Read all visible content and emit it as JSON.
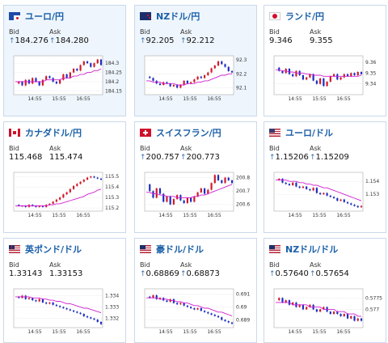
{
  "cards": [
    {
      "id": "usdjpy",
      "title": "ユーロ/円",
      "bid": "184.276",
      "ask": "184.280",
      "bid_arrow": "↑",
      "ask_arrow": "↑",
      "flag": "eu-jp",
      "highlight": true,
      "chart_data": {
        "type": "line",
        "x_ticks": [
          "14:55",
          "15:55",
          "16:55"
        ],
        "y_ticks": [
          "184.3",
          "184.25",
          "184.2",
          "184.15"
        ],
        "ylim": [
          184.13,
          184.34
        ],
        "series": [
          {
            "values": [
              184.19,
              184.2,
              184.18,
              184.21,
              184.19,
              184.22,
              184.2,
              184.18,
              184.21,
              184.23,
              184.22,
              184.2,
              184.19,
              184.21,
              184.24,
              184.22,
              184.25,
              184.27,
              184.26,
              184.29,
              184.31,
              184.3,
              184.28,
              184.3,
              184.32,
              184.29
            ],
            "color": "#2033c8"
          },
          {
            "values": [
              184.2,
              184.2,
              184.2,
              184.2,
              184.2,
              184.2,
              184.2,
              184.2,
              184.2,
              184.21,
              184.21,
              184.21,
              184.21,
              184.21,
              184.22,
              184.22,
              184.22,
              184.23,
              184.23,
              184.24,
              184.24,
              184.25,
              184.25,
              184.26,
              184.26,
              184.27
            ],
            "color": "#d020d0"
          }
        ]
      }
    },
    {
      "id": "nzdjpy",
      "title": "NZドル/円",
      "bid": "92.205",
      "ask": "92.212",
      "bid_arrow": "↑",
      "ask_arrow": "↑",
      "flag": "nz",
      "highlight": true,
      "chart_data": {
        "type": "line",
        "x_ticks": [
          "14:55",
          "15:55",
          "16:55"
        ],
        "y_ticks": [
          "92.3",
          "92.2",
          "92.1"
        ],
        "ylim": [
          92.05,
          92.33
        ],
        "series": [
          {
            "values": [
              92.18,
              92.17,
              92.15,
              92.13,
              92.12,
              92.14,
              92.13,
              92.11,
              92.12,
              92.1,
              92.12,
              92.15,
              92.13,
              92.14,
              92.16,
              92.18,
              92.17,
              92.19,
              92.21,
              92.24,
              92.26,
              92.29,
              92.27,
              92.25,
              92.22,
              92.21
            ],
            "color": "#2033c8"
          },
          {
            "values": [
              92.15,
              92.15,
              92.14,
              92.14,
              92.14,
              92.13,
              92.13,
              92.13,
              92.13,
              92.12,
              92.12,
              92.12,
              92.13,
              92.13,
              92.13,
              92.14,
              92.14,
              92.15,
              92.15,
              92.16,
              92.17,
              92.18,
              92.19,
              92.19,
              92.2,
              92.2
            ],
            "color": "#d020d0"
          }
        ]
      }
    },
    {
      "id": "zarjpy",
      "title": "ランド/円",
      "bid": "9.346",
      "ask": "9.355",
      "bid_arrow": "",
      "ask_arrow": "",
      "flag": "za",
      "highlight": false,
      "chart_data": {
        "type": "line",
        "x_ticks": [
          "14:55",
          "15:55",
          "16:55"
        ],
        "y_ticks": [
          "9.36",
          "9.35",
          "9.34"
        ],
        "ylim": [
          9.33,
          9.366
        ],
        "series": [
          {
            "values": [
              9.355,
              9.352,
              9.35,
              9.354,
              9.349,
              9.347,
              9.352,
              9.348,
              9.344,
              9.346,
              9.349,
              9.343,
              9.34,
              9.345,
              9.338,
              9.342,
              9.347,
              9.349,
              9.344,
              9.346,
              9.349,
              9.347,
              9.35,
              9.348,
              9.351,
              9.349
            ],
            "color": "#2033c8"
          },
          {
            "values": [
              9.353,
              9.353,
              9.352,
              9.352,
              9.351,
              9.351,
              9.35,
              9.35,
              9.35,
              9.349,
              9.349,
              9.348,
              9.348,
              9.348,
              9.347,
              9.347,
              9.347,
              9.347,
              9.347,
              9.347,
              9.347,
              9.347,
              9.347,
              9.347,
              9.347,
              9.348
            ],
            "color": "#d020d0"
          }
        ]
      }
    },
    {
      "id": "cadjpy",
      "title": "カナダドル/円",
      "bid": "115.468",
      "ask": "115.474",
      "bid_arrow": "",
      "ask_arrow": "",
      "flag": "ca",
      "highlight": false,
      "chart_data": {
        "type": "line",
        "x_ticks": [
          "14:55",
          "15:55",
          "16:55"
        ],
        "y_ticks": [
          "115.5",
          "115.4",
          "115.3",
          "115.2"
        ],
        "ylim": [
          115.17,
          115.54
        ],
        "series": [
          {
            "values": [
              115.23,
              115.22,
              115.22,
              115.21,
              115.23,
              115.22,
              115.21,
              115.22,
              115.21,
              115.23,
              115.24,
              115.26,
              115.28,
              115.3,
              115.33,
              115.35,
              115.38,
              115.41,
              115.43,
              115.45,
              115.47,
              115.49,
              115.5,
              115.49,
              115.48,
              115.47
            ],
            "color": "#2033c8"
          },
          {
            "values": [
              115.22,
              115.22,
              115.22,
              115.22,
              115.22,
              115.22,
              115.22,
              115.22,
              115.22,
              115.22,
              115.23,
              115.23,
              115.24,
              115.24,
              115.25,
              115.26,
              115.27,
              115.28,
              115.29,
              115.3,
              115.31,
              115.33,
              115.34,
              115.35,
              115.37,
              115.38
            ],
            "color": "#d020d0"
          }
        ]
      }
    },
    {
      "id": "chfjpy",
      "title": "スイスフラン/円",
      "bid": "200.757",
      "ask": "200.773",
      "bid_arrow": "↑",
      "ask_arrow": "↑",
      "flag": "ch",
      "highlight": false,
      "chart_data": {
        "type": "line",
        "x_ticks": [
          "14:55",
          "15:55",
          "16:55"
        ],
        "y_ticks": [
          "200.8",
          "200.7",
          "200.6"
        ],
        "ylim": [
          200.55,
          200.84
        ],
        "series": [
          {
            "values": [
              200.75,
              200.7,
              200.65,
              200.72,
              200.68,
              200.62,
              200.66,
              200.6,
              200.64,
              200.67,
              200.63,
              200.61,
              200.65,
              200.62,
              200.66,
              200.69,
              200.72,
              200.68,
              200.71,
              200.76,
              200.82,
              200.78,
              200.76,
              200.8,
              200.78,
              200.76
            ],
            "color": "#2033c8"
          },
          {
            "values": [
              200.69,
              200.69,
              200.68,
              200.68,
              200.67,
              200.67,
              200.66,
              200.66,
              200.66,
              200.65,
              200.65,
              200.65,
              200.65,
              200.65,
              200.66,
              200.66,
              200.67,
              200.67,
              200.68,
              200.69,
              200.7,
              200.71,
              200.72,
              200.73,
              200.74,
              200.75
            ],
            "color": "#d020d0"
          }
        ]
      }
    },
    {
      "id": "eurusd",
      "title": "ユーロ/ドル",
      "bid": "1.15206",
      "ask": "1.15209",
      "bid_arrow": "↑",
      "ask_arrow": "↑",
      "flag": "eu-us",
      "highlight": false,
      "chart_data": {
        "type": "line",
        "x_ticks": [
          "14:55",
          "15:55",
          "16:55"
        ],
        "y_ticks": [
          "1.154",
          "1.153"
        ],
        "ylim": [
          1.1517,
          1.1547
        ],
        "series": [
          {
            "values": [
              1.1541,
              1.1542,
              1.1539,
              1.1538,
              1.1537,
              1.1539,
              1.1536,
              1.1535,
              1.1536,
              1.1534,
              1.1533,
              1.1535,
              1.1531,
              1.153,
              1.1531,
              1.1529,
              1.1528,
              1.1527,
              1.1525,
              1.1526,
              1.1524,
              1.1523,
              1.1522,
              1.1521,
              1.152,
              1.1521
            ],
            "color": "#2033c8"
          },
          {
            "values": [
              1.1541,
              1.1541,
              1.1541,
              1.1541,
              1.154,
              1.154,
              1.154,
              1.1539,
              1.1539,
              1.1538,
              1.1538,
              1.1537,
              1.1537,
              1.1536,
              1.1535,
              1.1535,
              1.1534,
              1.1533,
              1.1532,
              1.1531,
              1.153,
              1.1529,
              1.1528,
              1.1527,
              1.1526,
              1.1525
            ],
            "color": "#d020d0"
          }
        ]
      }
    },
    {
      "id": "gbpusd",
      "title": "英ポンド/ドル",
      "bid": "1.33143",
      "ask": "1.33153",
      "bid_arrow": "",
      "ask_arrow": "",
      "flag": "gb-us",
      "highlight": false,
      "chart_data": {
        "type": "line",
        "x_ticks": [
          "14:55",
          "15:55",
          "16:55"
        ],
        "y_ticks": [
          "1.334",
          "1.333",
          "1.332"
        ],
        "ylim": [
          1.3312,
          1.3346
        ],
        "series": [
          {
            "values": [
              1.3339,
              1.3338,
              1.334,
              1.3337,
              1.3338,
              1.3336,
              1.3335,
              1.3337,
              1.3334,
              1.3333,
              1.3334,
              1.3332,
              1.3331,
              1.333,
              1.3329,
              1.3328,
              1.3327,
              1.3326,
              1.3325,
              1.3324,
              1.3322,
              1.3321,
              1.332,
              1.3319,
              1.3317,
              1.3315
            ],
            "color": "#2033c8"
          },
          {
            "values": [
              1.3339,
              1.3339,
              1.3339,
              1.3339,
              1.3339,
              1.3338,
              1.3338,
              1.3338,
              1.3337,
              1.3337,
              1.3336,
              1.3336,
              1.3335,
              1.3335,
              1.3334,
              1.3333,
              1.3333,
              1.3332,
              1.3331,
              1.333,
              1.3329,
              1.3329,
              1.3328,
              1.3327,
              1.3326,
              1.3325
            ],
            "color": "#d020d0"
          }
        ]
      }
    },
    {
      "id": "audusd",
      "title": "豪ドル/ドル",
      "bid": "0.68869",
      "ask": "0.68873",
      "bid_arrow": "↑",
      "ask_arrow": "↑",
      "flag": "au-us",
      "highlight": false,
      "chart_data": {
        "type": "line",
        "x_ticks": [
          "14:55",
          "15:55",
          "16:55"
        ],
        "y_ticks": [
          "0.691",
          "0.69",
          "0.689"
        ],
        "ylim": [
          0.6884,
          0.6914
        ],
        "series": [
          {
            "values": [
              0.6908,
              0.6907,
              0.6909,
              0.6906,
              0.6907,
              0.6905,
              0.6904,
              0.6906,
              0.6903,
              0.6902,
              0.6903,
              0.6901,
              0.69,
              0.6899,
              0.6898,
              0.6899,
              0.6897,
              0.6896,
              0.6895,
              0.6894,
              0.6893,
              0.6892,
              0.689,
              0.6889,
              0.6888,
              0.6887
            ],
            "color": "#2033c8"
          },
          {
            "values": [
              0.6907,
              0.6907,
              0.6907,
              0.6907,
              0.6906,
              0.6906,
              0.6906,
              0.6905,
              0.6905,
              0.6904,
              0.6904,
              0.6903,
              0.6903,
              0.6902,
              0.6901,
              0.6901,
              0.69,
              0.6899,
              0.6899,
              0.6898,
              0.6897,
              0.6896,
              0.6896,
              0.6895,
              0.6894,
              0.6893
            ],
            "color": "#d020d0"
          }
        ]
      }
    },
    {
      "id": "nzdusd",
      "title": "NZドル/ドル",
      "bid": "0.57640",
      "ask": "0.57654",
      "bid_arrow": "↑",
      "ask_arrow": "↑",
      "flag": "nz-us",
      "highlight": false,
      "chart_data": {
        "type": "line",
        "x_ticks": [
          "14:55",
          "15:55",
          "16:55"
        ],
        "y_ticks": [
          "0.5775",
          "0.577"
        ],
        "ylim": [
          0.5762,
          0.5779
        ],
        "series": [
          {
            "values": [
              0.5774,
              0.5775,
              0.5773,
              0.5774,
              0.5772,
              0.5773,
              0.5771,
              0.5772,
              0.577,
              0.5771,
              0.5772,
              0.577,
              0.5769,
              0.577,
              0.5771,
              0.5769,
              0.5768,
              0.5769,
              0.5768,
              0.5767,
              0.5768,
              0.5766,
              0.5767,
              0.5765,
              0.5766,
              0.5765
            ],
            "color": "#2033c8"
          },
          {
            "values": [
              0.5773,
              0.5773,
              0.5773,
              0.5773,
              0.5773,
              0.5772,
              0.5772,
              0.5772,
              0.5772,
              0.5772,
              0.5771,
              0.5771,
              0.5771,
              0.5771,
              0.577,
              0.577,
              0.577,
              0.577,
              0.5769,
              0.5769,
              0.5769,
              0.5768,
              0.5768,
              0.5768,
              0.5767,
              0.5767
            ],
            "color": "#d020d0"
          }
        ]
      }
    }
  ],
  "labels": {
    "bid": "Bid",
    "ask": "Ask"
  }
}
